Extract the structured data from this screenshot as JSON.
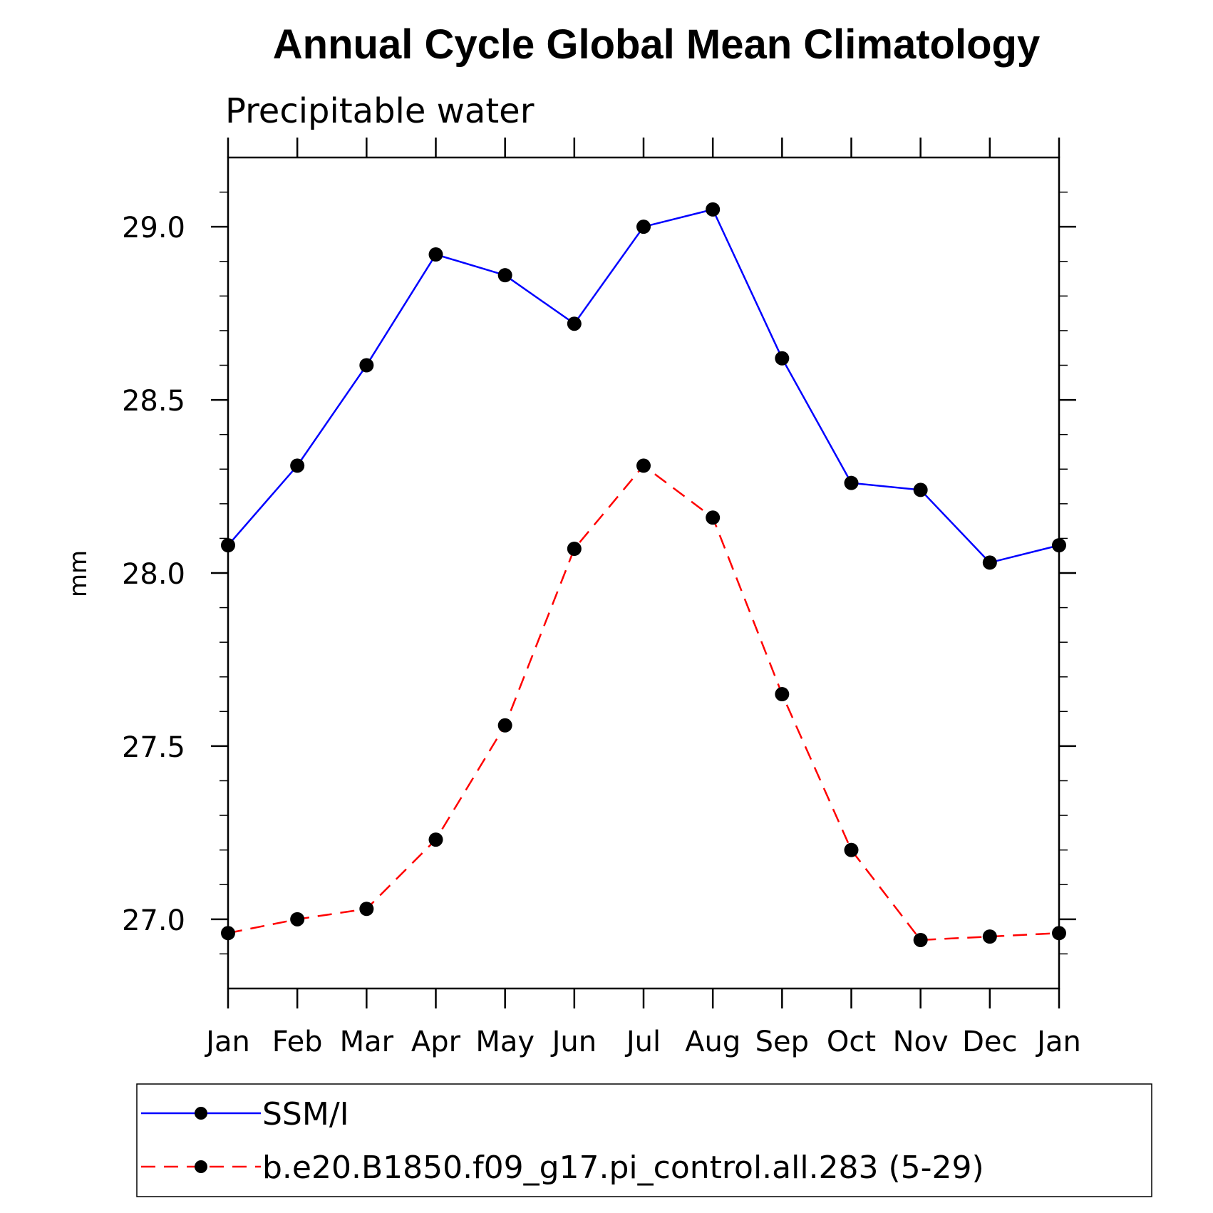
{
  "chart_data": {
    "type": "line",
    "title": "Annual Cycle Global Mean Climatology",
    "subtitle": "Precipitable water",
    "xlabel": "",
    "ylabel": "mm",
    "categories": [
      "Jan",
      "Feb",
      "Mar",
      "Apr",
      "May",
      "Jun",
      "Jul",
      "Aug",
      "Sep",
      "Oct",
      "Nov",
      "Dec",
      "Jan"
    ],
    "ylim": [
      26.8,
      29.2
    ],
    "yticks": [
      "27.0",
      "27.5",
      "28.0",
      "28.5",
      "29.0"
    ],
    "ytick_values": [
      27.0,
      27.5,
      28.0,
      28.5,
      29.0
    ],
    "y_minor_step": 0.1,
    "grid": false,
    "legend_position": "bottom",
    "series": [
      {
        "name": "SSM/I",
        "color": "#0000ff",
        "line_style": "solid",
        "marker": "filled-circle",
        "values": [
          28.08,
          28.31,
          28.6,
          28.92,
          28.86,
          28.72,
          29.0,
          29.05,
          28.62,
          28.26,
          28.24,
          28.03,
          28.08
        ]
      },
      {
        "name": "b.e20.B1850.f09_g17.pi_control.all.283 (5-29)",
        "color": "#ff0000",
        "line_style": "dashed",
        "marker": "filled-circle",
        "values": [
          26.96,
          27.0,
          27.03,
          27.23,
          27.56,
          28.07,
          28.31,
          28.16,
          27.65,
          27.2,
          26.94,
          26.95,
          26.96
        ]
      }
    ]
  }
}
